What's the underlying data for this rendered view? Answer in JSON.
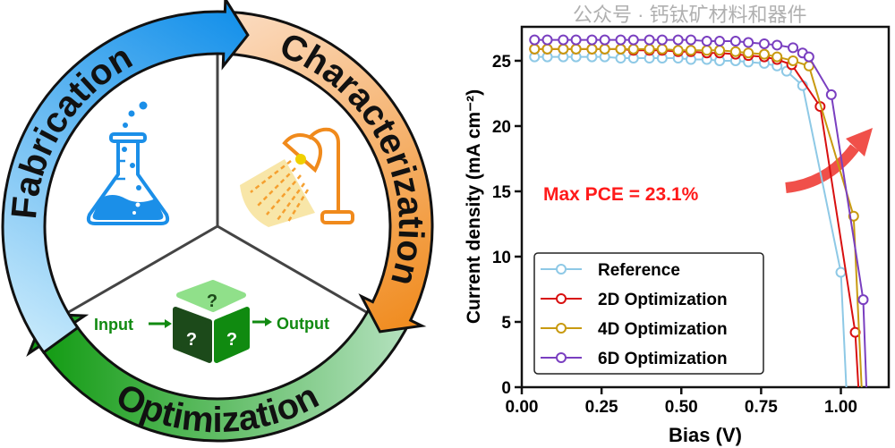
{
  "diagram": {
    "stages": [
      {
        "label": "Fabrication",
        "color_start": "#c4e8fb",
        "color_end": "#1490ea"
      },
      {
        "label": "Characterization",
        "color_start": "#fbdcc2",
        "color_end": "#f08a1c"
      },
      {
        "label": "Optimization",
        "color_start": "#109a10",
        "color_end": "#b2e0bc"
      }
    ],
    "input_label": "Input",
    "output_label": "Output",
    "cube_mark": "?",
    "icons": [
      "flask-icon",
      "lamp-icon",
      "black-box-cube-icon"
    ]
  },
  "chart_data": {
    "type": "line",
    "xlabel": "Bias (V)",
    "ylabel": "Current density (mA cm⁻²)",
    "xlim": [
      0,
      1.15
    ],
    "ylim": [
      0,
      27.6
    ],
    "xticks": [
      "0.00",
      "0.25",
      "0.50",
      "0.75",
      "1.00"
    ],
    "xtick_values": [
      0,
      0.25,
      0.5,
      0.75,
      1.0
    ],
    "yticks": [
      "0",
      "5",
      "10",
      "15",
      "20",
      "25"
    ],
    "ytick_values": [
      0,
      5,
      10,
      15,
      20,
      25
    ],
    "grid": false,
    "legend_position": "bottom-left",
    "annotation": "Max PCE = 23.1%",
    "annotation_color": "#ff1a1a",
    "series": [
      {
        "name": "Reference",
        "color": "#8ec9e6",
        "x": [
          0.04,
          0.08,
          0.13,
          0.17,
          0.22,
          0.26,
          0.31,
          0.35,
          0.4,
          0.44,
          0.49,
          0.53,
          0.58,
          0.62,
          0.67,
          0.71,
          0.76,
          0.8,
          0.83,
          0.88,
          1.0,
          1.017
        ],
        "y": [
          25.3,
          25.3,
          25.3,
          25.3,
          25.3,
          25.3,
          25.2,
          25.2,
          25.2,
          25.2,
          25.2,
          25.1,
          25.1,
          25.0,
          25.0,
          24.9,
          24.8,
          24.6,
          24.2,
          23.1,
          8.8,
          0
        ]
      },
      {
        "name": "2D Optimization",
        "color": "#d81010",
        "x": [
          0.04,
          0.08,
          0.13,
          0.17,
          0.22,
          0.26,
          0.31,
          0.35,
          0.4,
          0.44,
          0.49,
          0.53,
          0.58,
          0.62,
          0.67,
          0.71,
          0.76,
          0.8,
          0.846,
          0.935,
          1.045,
          1.055
        ],
        "y": [
          25.9,
          25.9,
          25.9,
          25.9,
          25.9,
          25.9,
          25.9,
          25.8,
          25.8,
          25.8,
          25.7,
          25.7,
          25.6,
          25.6,
          25.5,
          25.4,
          25.3,
          25.1,
          24.7,
          21.5,
          4.2,
          0
        ]
      },
      {
        "name": "4D Optimization",
        "color": "#c89a10",
        "x": [
          0.04,
          0.08,
          0.13,
          0.17,
          0.22,
          0.26,
          0.31,
          0.35,
          0.4,
          0.44,
          0.49,
          0.53,
          0.58,
          0.62,
          0.67,
          0.71,
          0.76,
          0.8,
          0.85,
          0.9,
          1.04,
          1.065
        ],
        "y": [
          25.9,
          25.9,
          25.9,
          25.9,
          25.9,
          25.9,
          25.9,
          25.9,
          25.9,
          25.9,
          25.8,
          25.8,
          25.8,
          25.8,
          25.7,
          25.6,
          25.5,
          25.3,
          25.0,
          24.6,
          13.1,
          0
        ]
      },
      {
        "name": "6D Optimization",
        "color": "#7a3fc0",
        "x": [
          0.04,
          0.08,
          0.13,
          0.17,
          0.22,
          0.26,
          0.31,
          0.35,
          0.4,
          0.44,
          0.49,
          0.53,
          0.58,
          0.62,
          0.67,
          0.71,
          0.76,
          0.8,
          0.85,
          0.88,
          0.9,
          0.97,
          1.07,
          1.08
        ],
        "y": [
          26.6,
          26.6,
          26.6,
          26.6,
          26.6,
          26.6,
          26.6,
          26.6,
          26.6,
          26.6,
          26.6,
          26.6,
          26.5,
          26.5,
          26.5,
          26.4,
          26.3,
          26.2,
          26.0,
          25.6,
          25.3,
          22.4,
          6.7,
          0
        ]
      }
    ]
  },
  "watermark": "公众号 · 钙钛矿材料和器件"
}
